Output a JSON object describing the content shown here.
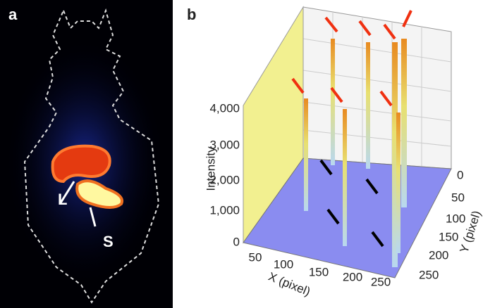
{
  "panel_a": {
    "label": "a",
    "annotations": [
      "L",
      "S"
    ]
  },
  "panel_b": {
    "label": "b",
    "z_axis": {
      "title": "Intensity",
      "ticks": [
        "4,000",
        "3,000",
        "2,000",
        "1,000",
        "0"
      ]
    },
    "x_axis": {
      "title": "X (pixel)",
      "ticks": [
        "50",
        "100",
        "150",
        "200",
        "250"
      ]
    },
    "y_axis": {
      "title": "Y (pixel)",
      "ticks": [
        "0",
        "50",
        "100",
        "150",
        "200",
        "250"
      ]
    }
  }
}
